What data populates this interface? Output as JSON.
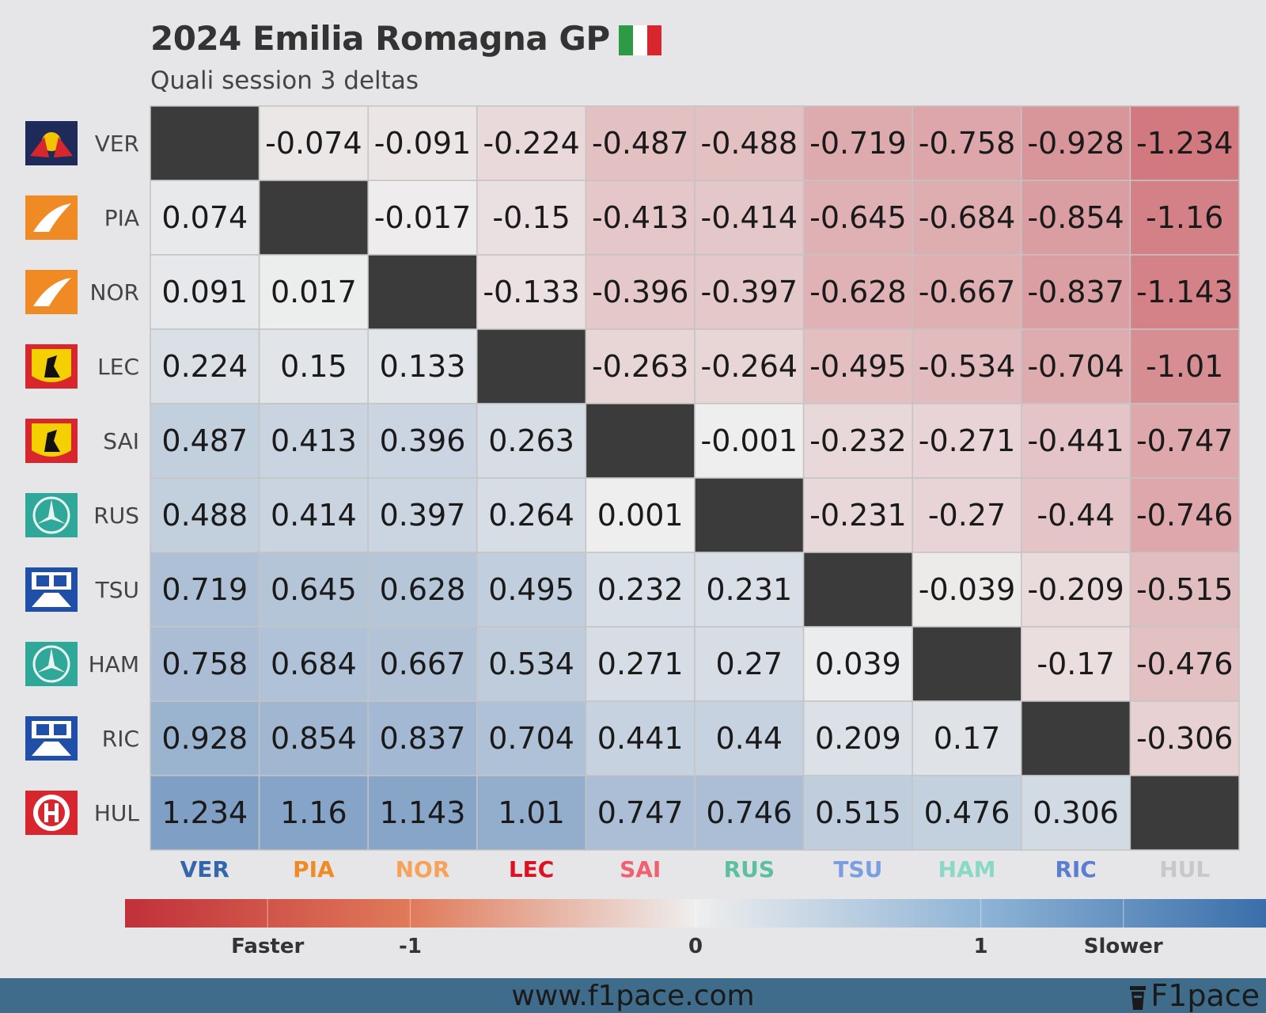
{
  "header": {
    "title": "2024 Emilia Romagna GP",
    "subtitle": "Quali session 3 deltas"
  },
  "colors": {
    "faster": "#c0303a",
    "neutral": "#eeeeee",
    "slower": "#3a6eaa",
    "diagonal": "#3b3b3b",
    "flag_green": "#2e9a46",
    "flag_white": "#ffffff",
    "flag_red": "#d8262e"
  },
  "chart_data": {
    "type": "heatmap",
    "rows": [
      "VER",
      "PIA",
      "NOR",
      "LEC",
      "SAI",
      "RUS",
      "TSU",
      "HAM",
      "RIC",
      "HUL"
    ],
    "columns": [
      "VER",
      "PIA",
      "NOR",
      "LEC",
      "SAI",
      "RUS",
      "TSU",
      "HAM",
      "RIC",
      "HUL"
    ],
    "cells": [
      [
        null,
        "-0.074",
        "-0.091",
        "-0.224",
        "-0.487",
        "-0.488",
        "-0.719",
        "-0.758",
        "-0.928",
        "-1.234"
      ],
      [
        "0.074",
        null,
        "-0.017",
        "-0.15",
        "-0.413",
        "-0.414",
        "-0.645",
        "-0.684",
        "-0.854",
        "-1.16"
      ],
      [
        "0.091",
        "0.017",
        null,
        "-0.133",
        "-0.396",
        "-0.397",
        "-0.628",
        "-0.667",
        "-0.837",
        "-1.143"
      ],
      [
        "0.224",
        "0.15",
        "0.133",
        null,
        "-0.263",
        "-0.264",
        "-0.495",
        "-0.534",
        "-0.704",
        "-1.01"
      ],
      [
        "0.487",
        "0.413",
        "0.396",
        "0.263",
        null,
        "-0.001",
        "-0.232",
        "-0.271",
        "-0.441",
        "-0.747"
      ],
      [
        "0.488",
        "0.414",
        "0.397",
        "0.264",
        "0.001",
        null,
        "-0.231",
        "-0.27",
        "-0.44",
        "-0.746"
      ],
      [
        "0.719",
        "0.645",
        "0.628",
        "0.495",
        "0.232",
        "0.231",
        null,
        "-0.039",
        "-0.209",
        "-0.515"
      ],
      [
        "0.758",
        "0.684",
        "0.667",
        "0.534",
        "0.271",
        "0.27",
        "0.039",
        null,
        "-0.17",
        "-0.476"
      ],
      [
        "0.928",
        "0.854",
        "0.837",
        "0.704",
        "0.441",
        "0.44",
        "0.209",
        "0.17",
        null,
        "-0.306"
      ],
      [
        "1.234",
        "1.16",
        "1.143",
        "1.01",
        "0.747",
        "0.746",
        "0.515",
        "0.476",
        "0.306",
        null
      ]
    ],
    "column_colors": [
      "#3366aa",
      "#f08a24",
      "#f5a25a",
      "#dd1122",
      "#f06070",
      "#5cc0a0",
      "#7a9ee0",
      "#8ad8c6",
      "#5a7fd0",
      "#c8c8c8"
    ],
    "team_logos": [
      "redbull-logo",
      "mclaren-logo",
      "mclaren-logo",
      "ferrari-logo",
      "ferrari-logo",
      "mercedes-logo",
      "rb-logo",
      "mercedes-logo",
      "rb-logo",
      "haas-logo"
    ],
    "colorbar": {
      "range": [
        -2,
        2
      ],
      "tick_values": [
        -1,
        0,
        1
      ],
      "tick_labels": [
        "-1",
        "0",
        "1"
      ],
      "left_label": "Faster",
      "right_label": "Slower"
    }
  },
  "footer": {
    "url": "www.f1pace.com",
    "brand": "F1pace"
  }
}
